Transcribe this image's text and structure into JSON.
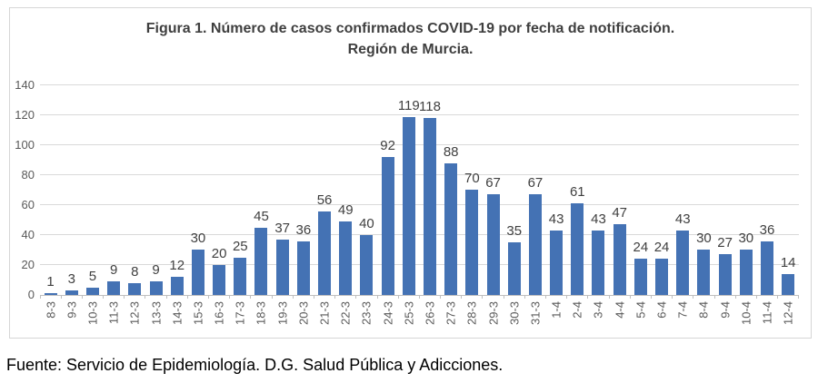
{
  "figure": {
    "title_line1": "Figura 1. Número de casos confirmados COVID-19 por fecha de notificación.",
    "title_line2": "Región de Murcia."
  },
  "footer": {
    "source": "Fuente: Servicio de Epidemiología. D.G. Salud Pública y Adicciones."
  },
  "chart_data": {
    "type": "bar",
    "title": "Figura 1. Número de casos confirmados COVID-19 por fecha de notificación. Región de Murcia.",
    "categories": [
      "8-3",
      "9-3",
      "10-3",
      "11-3",
      "12-3",
      "13-3",
      "14-3",
      "15-3",
      "16-3",
      "17-3",
      "18-3",
      "19-3",
      "20-3",
      "21-3",
      "22-3",
      "23-3",
      "24-3",
      "25-3",
      "26-3",
      "27-3",
      "28-3",
      "29-3",
      "30-3",
      "31-3",
      "1-4",
      "2-4",
      "3-4",
      "4-4",
      "5-4",
      "6-4",
      "7-4",
      "8-4",
      "9-4",
      "10-4",
      "11-4",
      "12-4"
    ],
    "values": [
      1,
      3,
      5,
      9,
      8,
      9,
      12,
      30,
      20,
      25,
      45,
      37,
      36,
      56,
      49,
      40,
      92,
      119,
      118,
      88,
      70,
      67,
      35,
      67,
      43,
      61,
      43,
      47,
      24,
      24,
      43,
      30,
      27,
      30,
      36,
      14
    ],
    "xlabel": "",
    "ylabel": "",
    "ylim": [
      0,
      140
    ],
    "yticks": [
      0,
      20,
      40,
      60,
      80,
      100,
      120,
      140
    ],
    "grid": true,
    "legend": false,
    "data_labels": true,
    "bar_color": "#4472b4",
    "gridline_color": "#d9d9d9",
    "axis_color": "#bfbfbf",
    "value_label_color": "#404040",
    "tick_label_color": "#595959"
  }
}
